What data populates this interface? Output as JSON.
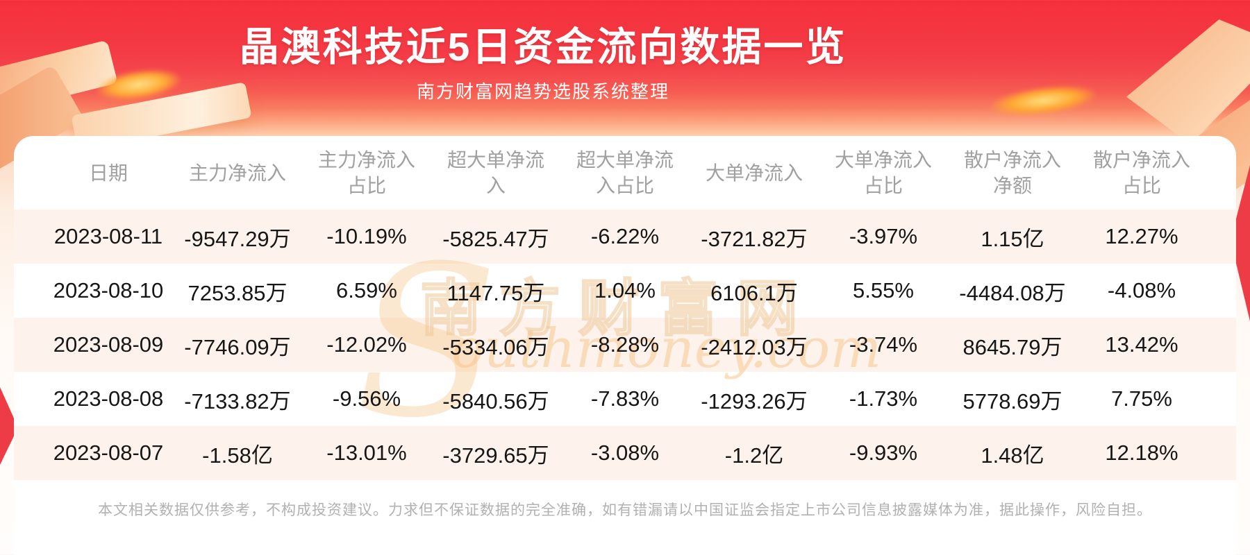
{
  "banner": {
    "title": "晶澳科技近5日资金流向数据一览",
    "subtitle": "南方财富网趋势选股系统整理"
  },
  "table": {
    "columns": [
      {
        "lines": [
          "日期"
        ]
      },
      {
        "lines": [
          "主力净流入"
        ]
      },
      {
        "lines": [
          "主力净流入",
          "占比"
        ]
      },
      {
        "lines": [
          "超大单净流",
          "入"
        ]
      },
      {
        "lines": [
          "超大单净流",
          "入占比"
        ]
      },
      {
        "lines": [
          "大单净流入"
        ]
      },
      {
        "lines": [
          "大单净流入",
          "占比"
        ]
      },
      {
        "lines": [
          "散户净流入",
          "净额"
        ]
      },
      {
        "lines": [
          "散户净流入",
          "占比"
        ]
      }
    ]
  },
  "chart_data": {
    "type": "table",
    "title": "晶澳科技近5日资金流向数据一览",
    "subtitle": "南方财富网趋势选股系统整理",
    "columns": [
      "日期",
      "主力净流入",
      "主力净流入占比",
      "超大单净流入",
      "超大单净流入占比",
      "大单净流入",
      "大单净流入占比",
      "散户净流入净额",
      "散户净流入占比"
    ],
    "rows": [
      [
        "2023-08-11",
        "-9547.29万",
        "-10.19%",
        "-5825.47万",
        "-6.22%",
        "-3721.82万",
        "-3.97%",
        "1.15亿",
        "12.27%"
      ],
      [
        "2023-08-10",
        "7253.85万",
        "6.59%",
        "1147.75万",
        "1.04%",
        "6106.1万",
        "5.55%",
        "-4484.08万",
        "-4.08%"
      ],
      [
        "2023-08-09",
        "-7746.09万",
        "-12.02%",
        "-5334.06万",
        "-8.28%",
        "-2412.03万",
        "-3.74%",
        "8645.79万",
        "13.42%"
      ],
      [
        "2023-08-08",
        "-7133.82万",
        "-9.56%",
        "-5840.56万",
        "-7.83%",
        "-1293.26万",
        "-1.73%",
        "5778.69万",
        "7.75%"
      ],
      [
        "2023-08-07",
        "-1.58亿",
        "-13.01%",
        "-3729.65万",
        "-3.08%",
        "-1.2亿",
        "-9.93%",
        "1.48亿",
        "12.18%"
      ]
    ]
  },
  "watermark": {
    "initial": "S",
    "cn": "南方财富网",
    "en": "outhmoney.com"
  },
  "footer": {
    "disclaimer": "本文相关数据仅供参考，不构成投资建议。力求但不保证数据的完全准确，如有错漏请以中国证监会指定上市公司信息披露媒体为准，据此操作，风险自担。"
  },
  "colors": {
    "banner_red": "#f5333e",
    "ribbon_red": "#ee3c46",
    "row_stripe": "#fdf3ec",
    "header_text": "#a0a0a0",
    "data_text": "#161616",
    "watermark_tan": "#f2c79c",
    "footer_text": "#b2b0b0",
    "gold_accent": "#ffad35"
  }
}
